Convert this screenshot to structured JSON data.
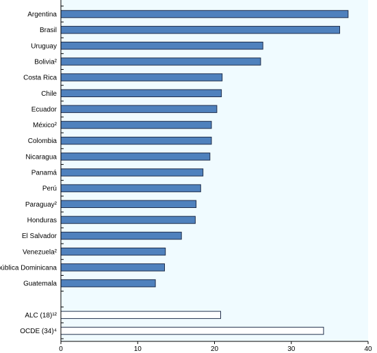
{
  "chart_data": {
    "type": "bar",
    "orientation": "horizontal",
    "title": "",
    "xlabel": "",
    "ylabel": "",
    "xlim": [
      0,
      40
    ],
    "x_ticks": [
      0,
      10,
      20,
      30,
      40
    ],
    "categories": [
      "Argentina",
      "Brasil",
      "Uruguay",
      "Bolivia²",
      "Costa Rica",
      "Chile",
      "Ecuador",
      "México²",
      "Colombia",
      "Nicaragua",
      "Panamá",
      "Perú",
      "Paraguay²",
      "Honduras",
      "El Salvador",
      "Venezuela²",
      "República Dominicana",
      "Guatemala",
      "",
      "ALC (18)¹²",
      "OCDE (34)⁴"
    ],
    "values": [
      37.4,
      36.3,
      26.3,
      26.0,
      21.0,
      20.9,
      20.3,
      19.6,
      19.6,
      19.4,
      18.5,
      18.2,
      17.6,
      17.5,
      15.7,
      13.6,
      13.5,
      12.3,
      null,
      20.8,
      34.2
    ],
    "bar_styles": [
      "filled",
      "filled",
      "filled",
      "filled",
      "filled",
      "filled",
      "filled",
      "filled",
      "filled",
      "filled",
      "filled",
      "filled",
      "filled",
      "filled",
      "filled",
      "filled",
      "filled",
      "filled",
      "none",
      "outline",
      "outline"
    ],
    "colors": {
      "bar_fill": "#4f81bd",
      "bar_stroke": "#1f2d4a",
      "outline_fill": "#ffffff",
      "plot_background": "#f0fbff",
      "axis": "#000000"
    },
    "grid": false,
    "legend": "none"
  }
}
